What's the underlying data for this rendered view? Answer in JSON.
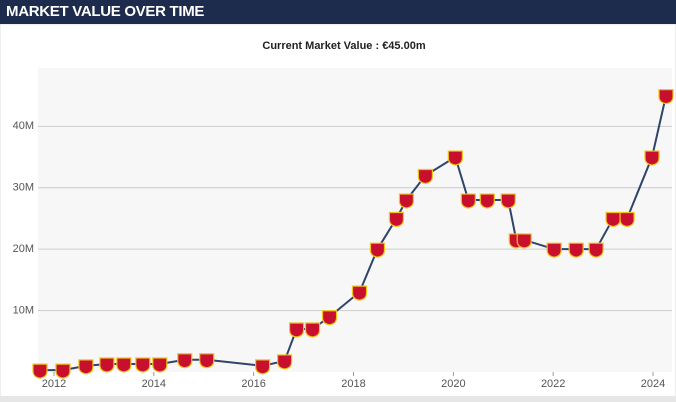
{
  "header": {
    "title": "MARKET VALUE OVER TIME"
  },
  "chart_data": {
    "type": "line",
    "title": "Current Market Value : €45.00m",
    "x": [
      2011.72,
      2012.18,
      2012.64,
      2013.06,
      2013.4,
      2013.78,
      2014.12,
      2014.62,
      2015.06,
      2016.18,
      2016.62,
      2016.86,
      2017.18,
      2017.52,
      2018.12,
      2018.48,
      2018.86,
      2019.06,
      2019.44,
      2020.04,
      2020.3,
      2020.68,
      2021.1,
      2021.26,
      2021.42,
      2022.02,
      2022.46,
      2022.86,
      2023.2,
      2023.48,
      2023.98,
      2024.26
    ],
    "series": [
      {
        "color": "#2e4468",
        "values": [
          0.3,
          0.3,
          1,
          1.3,
          1.3,
          1.3,
          1.3,
          2,
          2,
          1,
          1.8,
          7,
          7,
          9,
          13,
          20,
          25,
          28,
          32,
          35,
          28,
          28,
          28,
          21.5,
          21.5,
          20,
          20,
          20,
          25,
          25,
          35,
          45
        ]
      }
    ],
    "marker_color": "#c8102e",
    "xlim": [
      2011.68,
      2024.38
    ],
    "xticks": [
      2012,
      2014,
      2016,
      2018,
      2020,
      2022,
      2024
    ],
    "ylim": [
      0,
      49.5
    ],
    "yticks": [
      {
        "value": 10,
        "label": "10M"
      },
      {
        "value": 20,
        "label": "20M"
      },
      {
        "value": 30,
        "label": "30M"
      },
      {
        "value": 40,
        "label": "40M"
      }
    ],
    "grid": true
  }
}
